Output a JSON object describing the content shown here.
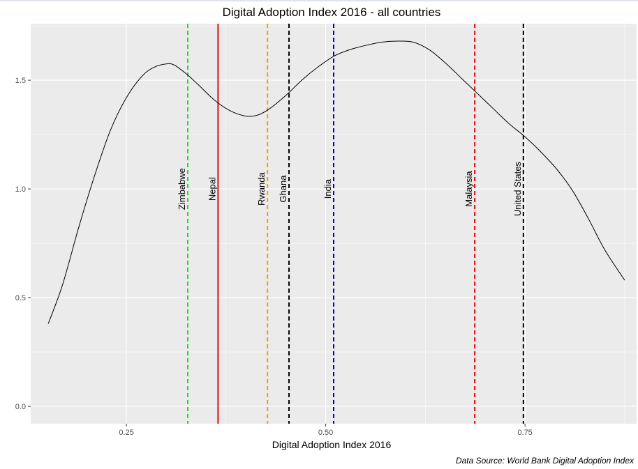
{
  "chart_data": {
    "type": "line",
    "title": "Digital Adoption Index 2016 - all countries",
    "xlabel": "Digital Adoption Index 2016",
    "ylabel": "",
    "caption": "Data Source: World Bank Digital Adoption Index",
    "xlim": [
      0.13,
      0.89
    ],
    "ylim": [
      -0.08,
      1.76
    ],
    "x_ticks": [
      0.25,
      0.5,
      0.75
    ],
    "x_tick_labels": [
      "0.25",
      "0.50",
      "0.75"
    ],
    "y_ticks": [
      0.0,
      0.5,
      1.0,
      1.5
    ],
    "y_tick_labels": [
      "0.0",
      "0.5",
      "1.0",
      "1.5"
    ],
    "grid": true,
    "density": {
      "x": [
        0.152,
        0.17,
        0.19,
        0.21,
        0.23,
        0.25,
        0.27,
        0.285,
        0.3,
        0.31,
        0.325,
        0.34,
        0.36,
        0.38,
        0.4,
        0.415,
        0.43,
        0.45,
        0.47,
        0.49,
        0.51,
        0.53,
        0.55,
        0.57,
        0.59,
        0.61,
        0.63,
        0.65,
        0.67,
        0.69,
        0.71,
        0.73,
        0.75,
        0.77,
        0.79,
        0.81,
        0.83,
        0.85,
        0.875
      ],
      "y": [
        0.38,
        0.56,
        0.82,
        1.06,
        1.27,
        1.42,
        1.52,
        1.56,
        1.575,
        1.57,
        1.53,
        1.48,
        1.41,
        1.36,
        1.335,
        1.34,
        1.37,
        1.43,
        1.5,
        1.56,
        1.61,
        1.64,
        1.66,
        1.675,
        1.68,
        1.675,
        1.64,
        1.58,
        1.51,
        1.44,
        1.37,
        1.3,
        1.24,
        1.17,
        1.09,
        0.99,
        0.86,
        0.72,
        0.58
      ]
    },
    "markers": [
      {
        "name": "Zimbabwe",
        "x": 0.327,
        "color": "#22dd22",
        "dashed": true
      },
      {
        "name": "Nepal",
        "x": 0.365,
        "color": "#dd1111",
        "dashed": false
      },
      {
        "name": "Rwanda",
        "x": 0.427,
        "color": "#f0a500",
        "dashed": true
      },
      {
        "name": "Ghana",
        "x": 0.454,
        "color": "#000000",
        "dashed": true
      },
      {
        "name": "India",
        "x": 0.51,
        "color": "#0000dd",
        "dashed": true
      },
      {
        "name": "Malaysia",
        "x": 0.687,
        "color": "#ee0000",
        "dashed": true
      },
      {
        "name": "United States",
        "x": 0.748,
        "color": "#000000",
        "dashed": true
      }
    ]
  }
}
